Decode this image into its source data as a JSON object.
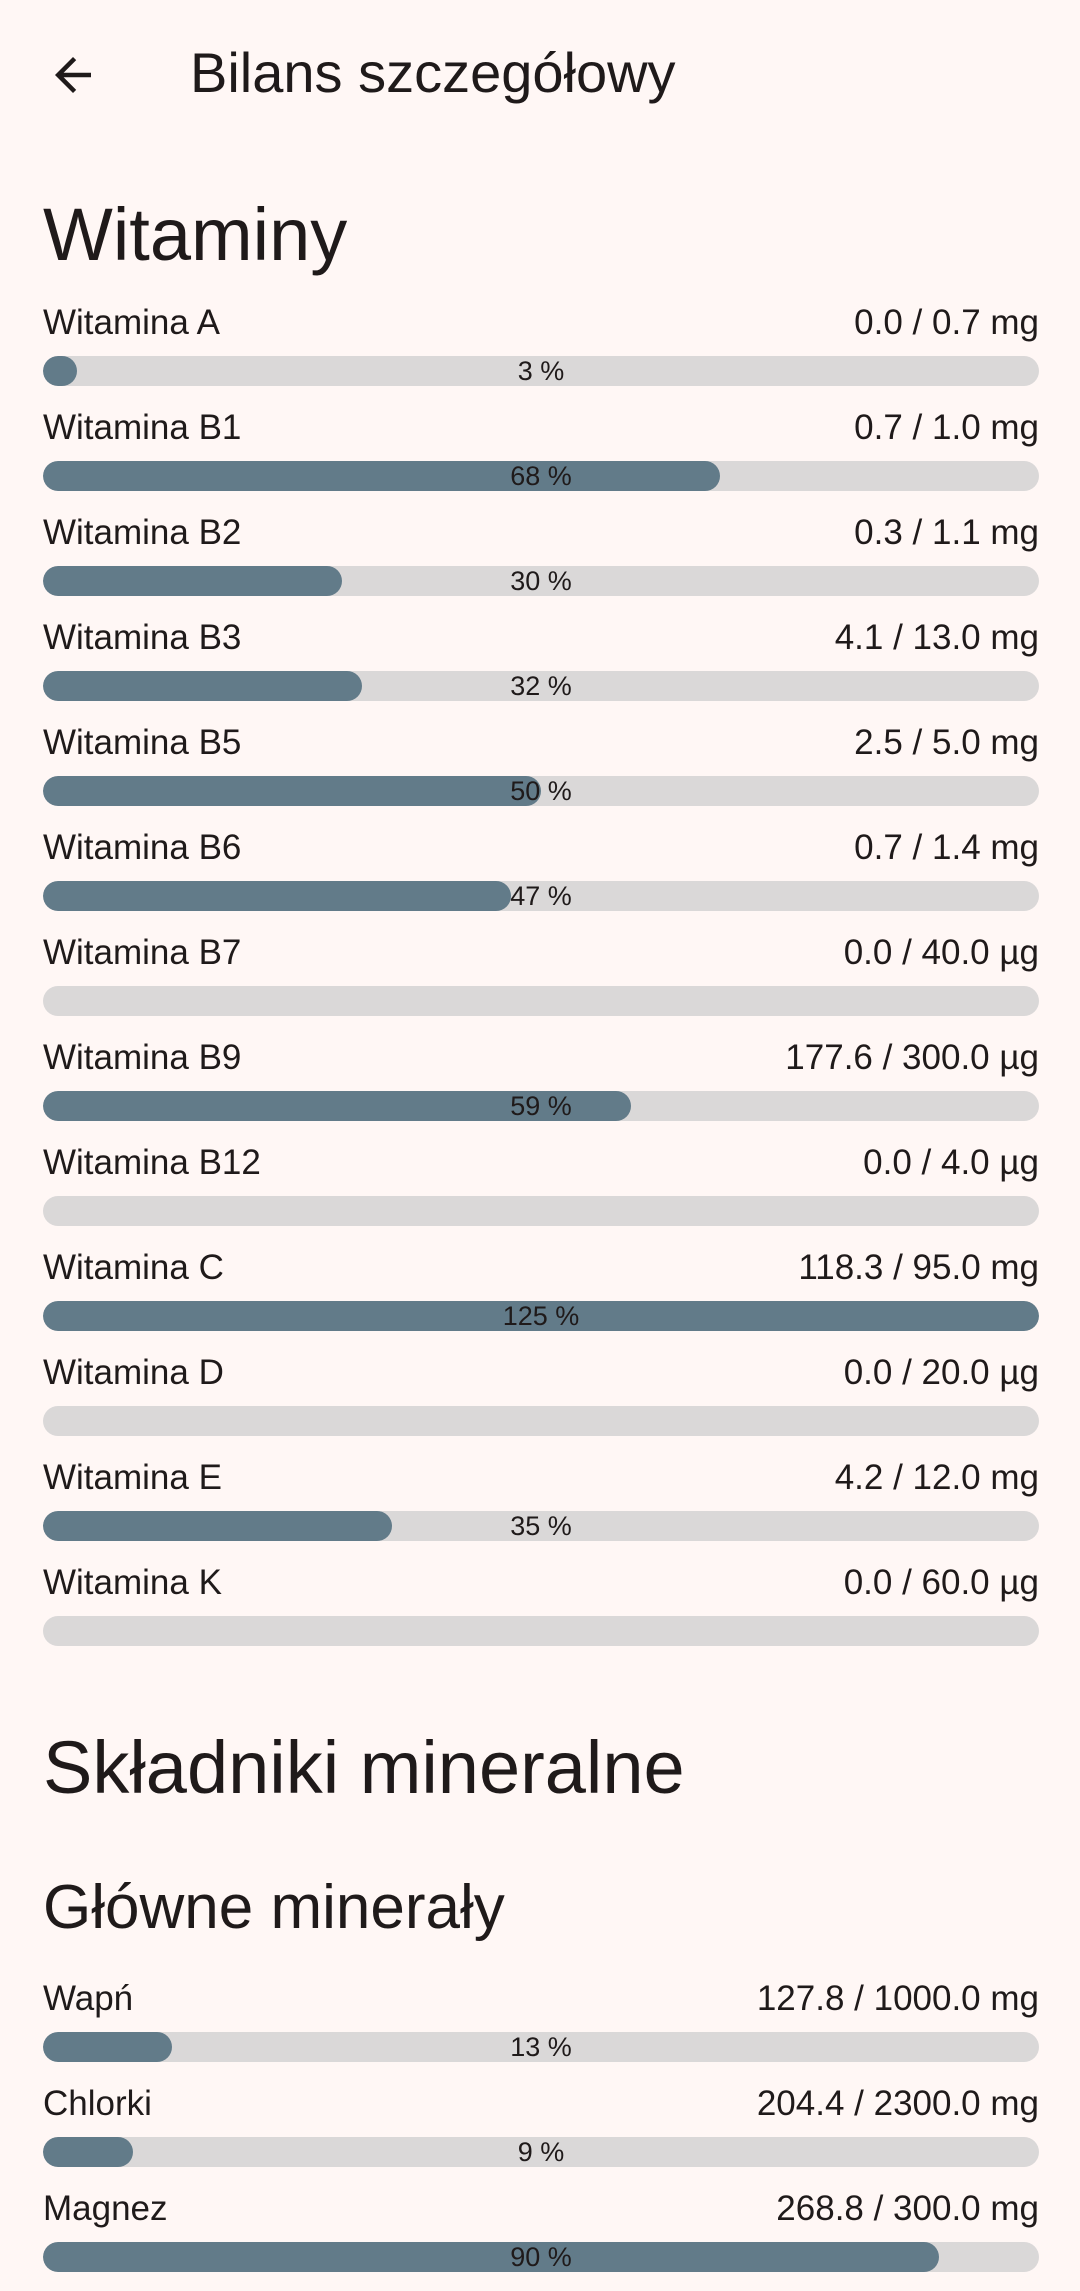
{
  "app_bar": {
    "title": "Bilans szczegółowy",
    "back_icon": "arrow-left-icon"
  },
  "colors": {
    "background": "#fff7f5",
    "bar_fill": "#627b89",
    "bar_track": "#dad8d8"
  },
  "vitamins": {
    "title": "Witaminy",
    "items": [
      {
        "name": "Witamina A",
        "value": "0.0 / 0.7 mg",
        "percent_label": "3 %",
        "progress": 0.03
      },
      {
        "name": "Witamina B1",
        "value": "0.7 / 1.0 mg",
        "percent_label": "68 %",
        "progress": 0.68
      },
      {
        "name": "Witamina B2",
        "value": "0.3 / 1.1 mg",
        "percent_label": "30 %",
        "progress": 0.3
      },
      {
        "name": "Witamina B3",
        "value": "4.1 / 13.0 mg",
        "percent_label": "32 %",
        "progress": 0.32
      },
      {
        "name": "Witamina B5",
        "value": "2.5 / 5.0 mg",
        "percent_label": "50 %",
        "progress": 0.5
      },
      {
        "name": "Witamina B6",
        "value": "0.7 / 1.4 mg",
        "percent_label": "47 %",
        "progress": 0.47
      },
      {
        "name": "Witamina B7",
        "value": "0.0 / 40.0 µg",
        "percent_label": "",
        "progress": 0
      },
      {
        "name": "Witamina B9",
        "value": "177.6 / 300.0 µg",
        "percent_label": "59 %",
        "progress": 0.59
      },
      {
        "name": "Witamina B12",
        "value": "0.0 / 4.0 µg",
        "percent_label": "",
        "progress": 0
      },
      {
        "name": "Witamina C",
        "value": "118.3 / 95.0 mg",
        "percent_label": "125 %",
        "progress": 1.25
      },
      {
        "name": "Witamina D",
        "value": "0.0 / 20.0 µg",
        "percent_label": "",
        "progress": 0
      },
      {
        "name": "Witamina E",
        "value": "4.2 / 12.0 mg",
        "percent_label": "35 %",
        "progress": 0.35
      },
      {
        "name": "Witamina K",
        "value": "0.0 / 60.0 µg",
        "percent_label": "",
        "progress": 0
      }
    ]
  },
  "minerals": {
    "title": "Składniki mineralne",
    "main": {
      "title": "Główne minerały",
      "items": [
        {
          "name": "Wapń",
          "value": "127.8 / 1000.0 mg",
          "percent_label": "13 %",
          "progress": 0.13
        },
        {
          "name": "Chlorki",
          "value": "204.4 / 2300.0 mg",
          "percent_label": "9 %",
          "progress": 0.09
        },
        {
          "name": "Magnez",
          "value": "268.8 / 300.0 mg",
          "percent_label": "90 %",
          "progress": 0.9
        }
      ]
    }
  }
}
